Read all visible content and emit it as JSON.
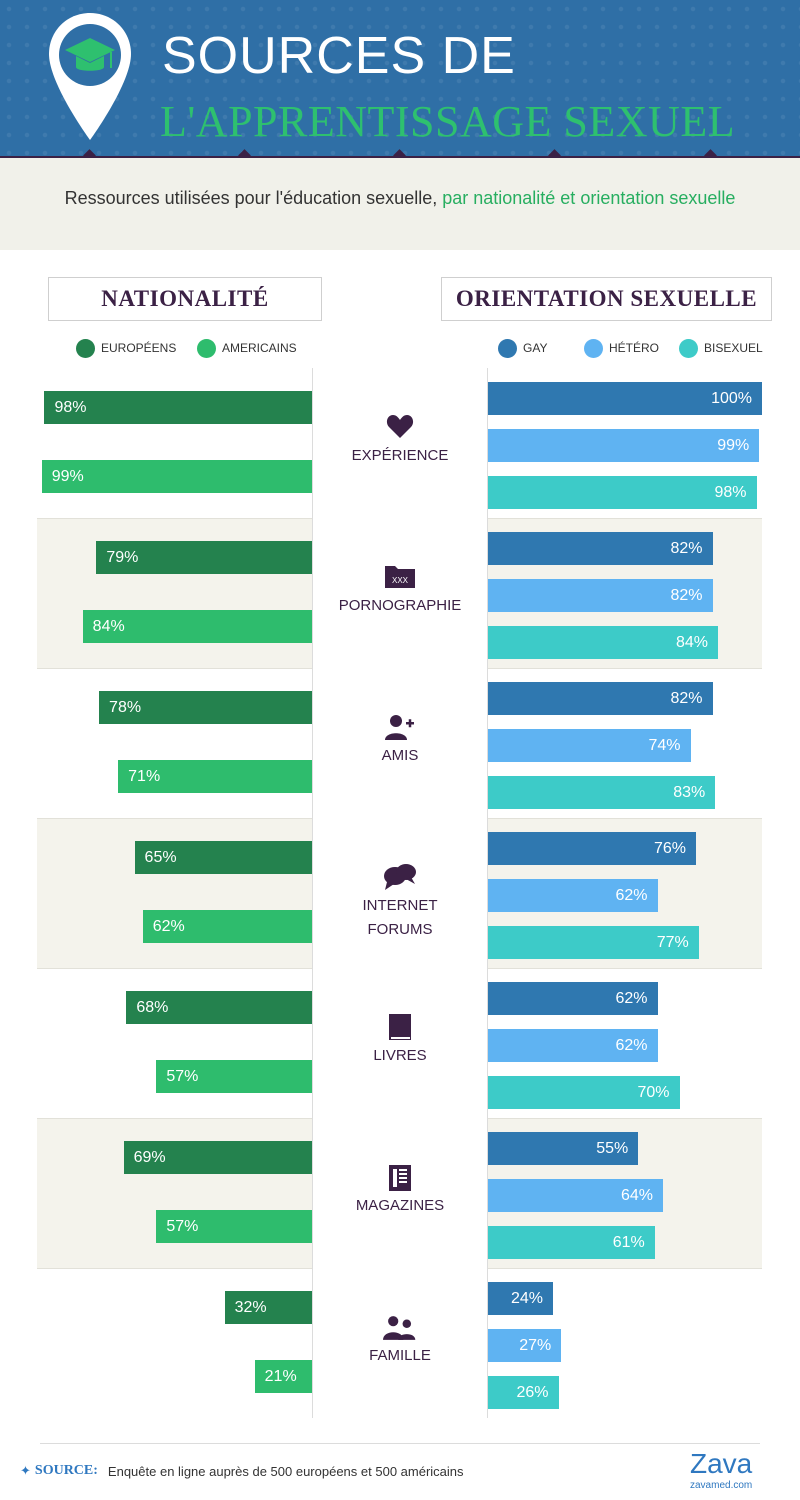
{
  "header": {
    "title_line1": "SOURCES DE",
    "title_line2": "L'APPRENTISSAGE SEXUEL",
    "subtitle_main": "Ressources utilisées pour l'éducation sexuelle,",
    "subtitle_highlight": " par nationalité et orientation sexuelle"
  },
  "sections": {
    "nationality_title": "NATIONALITÉ",
    "orientation_title": "ORIENTATION SEXUELLE"
  },
  "legend_left": [
    {
      "label": "EUROPÉENS",
      "color": "#24824e"
    },
    {
      "label": "AMERICAINS",
      "color": "#2ebc6d"
    }
  ],
  "legend_right": [
    {
      "label": "GAY",
      "color": "#2f78b0"
    },
    {
      "label": "HÉTÉRO",
      "color": "#5fb3f2"
    },
    {
      "label": "BISEXUEL",
      "color": "#3dcbc8"
    }
  ],
  "chart_data": {
    "type": "bar",
    "categories": [
      "EXPÉRIENCE",
      "PORNOGRAPHIE",
      "AMIS",
      "INTERNET FORUMS",
      "LIVRES",
      "MAGAZINES",
      "FAMILLE"
    ],
    "category_icons": [
      "heart-icon",
      "xxx-folder-icon",
      "add-user-icon",
      "chat-bubbles-icon",
      "book-icon",
      "magazine-icon",
      "family-icon"
    ],
    "value_unit": "%",
    "xlim": [
      0,
      100
    ],
    "nationality_series": [
      {
        "name": "EUROPÉENS",
        "values": [
          98,
          79,
          78,
          65,
          68,
          69,
          32
        ]
      },
      {
        "name": "AMERICAINS",
        "values": [
          99,
          84,
          71,
          62,
          57,
          57,
          21
        ]
      }
    ],
    "orientation_series": [
      {
        "name": "GAY",
        "values": [
          100,
          82,
          82,
          76,
          62,
          55,
          24
        ]
      },
      {
        "name": "HÉTÉRO",
        "values": [
          99,
          82,
          74,
          62,
          62,
          64,
          27
        ]
      },
      {
        "name": "BISEXUEL",
        "values": [
          98,
          84,
          83,
          77,
          70,
          61,
          26
        ]
      }
    ]
  },
  "footer": {
    "source_label": "SOURCE:",
    "source_text": "Enquête en ligne auprès de 500 européens et 500 américains",
    "logo": "Zava",
    "logo_url": "zavamed.com"
  }
}
